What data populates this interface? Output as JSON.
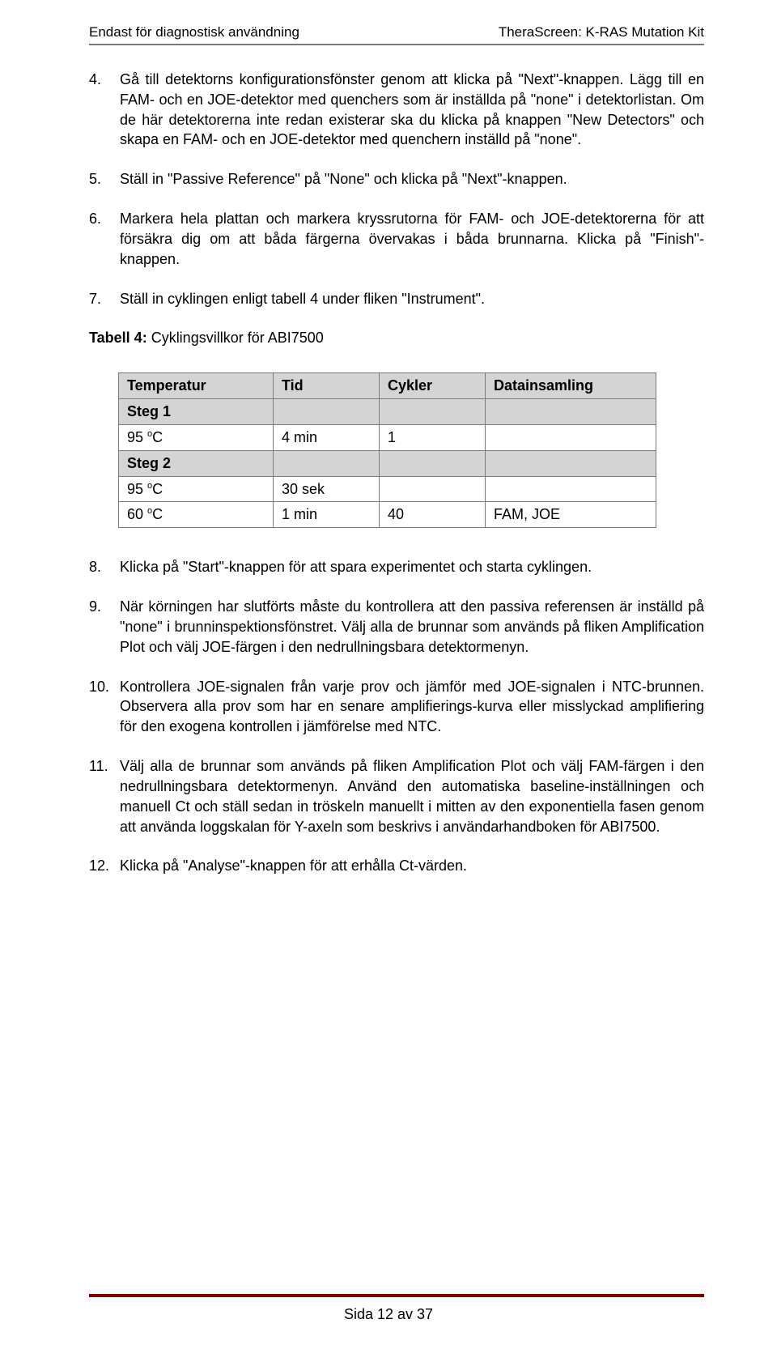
{
  "header": {
    "left": "Endast för diagnostisk användning",
    "right": "TheraScreen: K-RAS Mutation Kit"
  },
  "items": [
    {
      "num": "4.",
      "text": "Gå till detektorns konfigurationsfönster genom att klicka på \"Next\"-knappen. Lägg till en FAM- och en JOE-detektor med quenchers som är inställda på \"none\" i detektorlistan. Om de här detektorerna inte redan existerar ska du klicka på knappen \"New Detectors\" och skapa en FAM- och en JOE-detektor med quenchern inställd på \"none\"."
    },
    {
      "num": "5.",
      "text": "Ställ in \"Passive Reference\" på \"None\" och klicka på \"Next\"-knappen."
    },
    {
      "num": "6.",
      "text": "Markera hela plattan och markera kryssrutorna för FAM- och JOE-detektorerna för att försäkra dig om att båda färgerna övervakas i båda brunnarna. Klicka på \"Finish\"-knappen."
    },
    {
      "num": "7.",
      "text": "Ställ in cyklingen enligt tabell 4 under fliken \"Instrument\"."
    }
  ],
  "table_caption_bold": "Tabell 4:",
  "table_caption_rest": " Cyklingsvillkor för ABI7500",
  "table": {
    "headers": [
      "Temperatur",
      "Tid",
      "Cykler",
      "Datainsamling"
    ],
    "rows": [
      {
        "cells": [
          "Steg 1",
          "",
          "",
          ""
        ],
        "shaded": true,
        "bold_first": true
      },
      {
        "cells": [
          "95 °C",
          "4 min",
          "1",
          ""
        ],
        "shaded": false,
        "bold_first": false,
        "sup": true
      },
      {
        "cells": [
          "Steg 2",
          "",
          "",
          ""
        ],
        "shaded": true,
        "bold_first": true
      },
      {
        "cells": [
          "95 °C",
          "30 sek",
          "",
          ""
        ],
        "shaded": false,
        "bold_first": false,
        "sup": true
      },
      {
        "cells": [
          "60 °C",
          "1 min",
          "40",
          "FAM, JOE"
        ],
        "shaded": false,
        "bold_first": false,
        "sup": true
      }
    ]
  },
  "items2": [
    {
      "num": "8.",
      "text": "Klicka på \"Start\"-knappen för att spara experimentet och starta cyklingen."
    },
    {
      "num": "9.",
      "text": "När körningen har slutförts måste du kontrollera att den passiva referensen är inställd på \"none\" i brunninspektionsfönstret. Välj alla de brunnar som används på fliken Amplification Plot och välj JOE-färgen i den nedrullningsbara detektormenyn."
    },
    {
      "num": "10.",
      "text": "Kontrollera JOE-signalen från varje prov och jämför med JOE-signalen i NTC-brunnen. Observera alla prov som har en senare amplifierings-kurva eller misslyckad amplifiering för den exogena kontrollen i jämförelse med NTC."
    },
    {
      "num": "11.",
      "text": "Välj alla de brunnar som används på fliken Amplification Plot och välj FAM-färgen i den nedrullningsbara detektormenyn. Använd den automatiska baseline-inställningen och manuell Ct och ställ sedan in tröskeln manuellt i mitten av den exponentiella fasen genom att använda loggskalan för Y-axeln som beskrivs i användarhandboken för ABI7500."
    },
    {
      "num": "12.",
      "text": "Klicka på \"Analyse\"-knappen för att erhålla Ct-värden."
    }
  ],
  "footer": "Sida 12 av 37"
}
